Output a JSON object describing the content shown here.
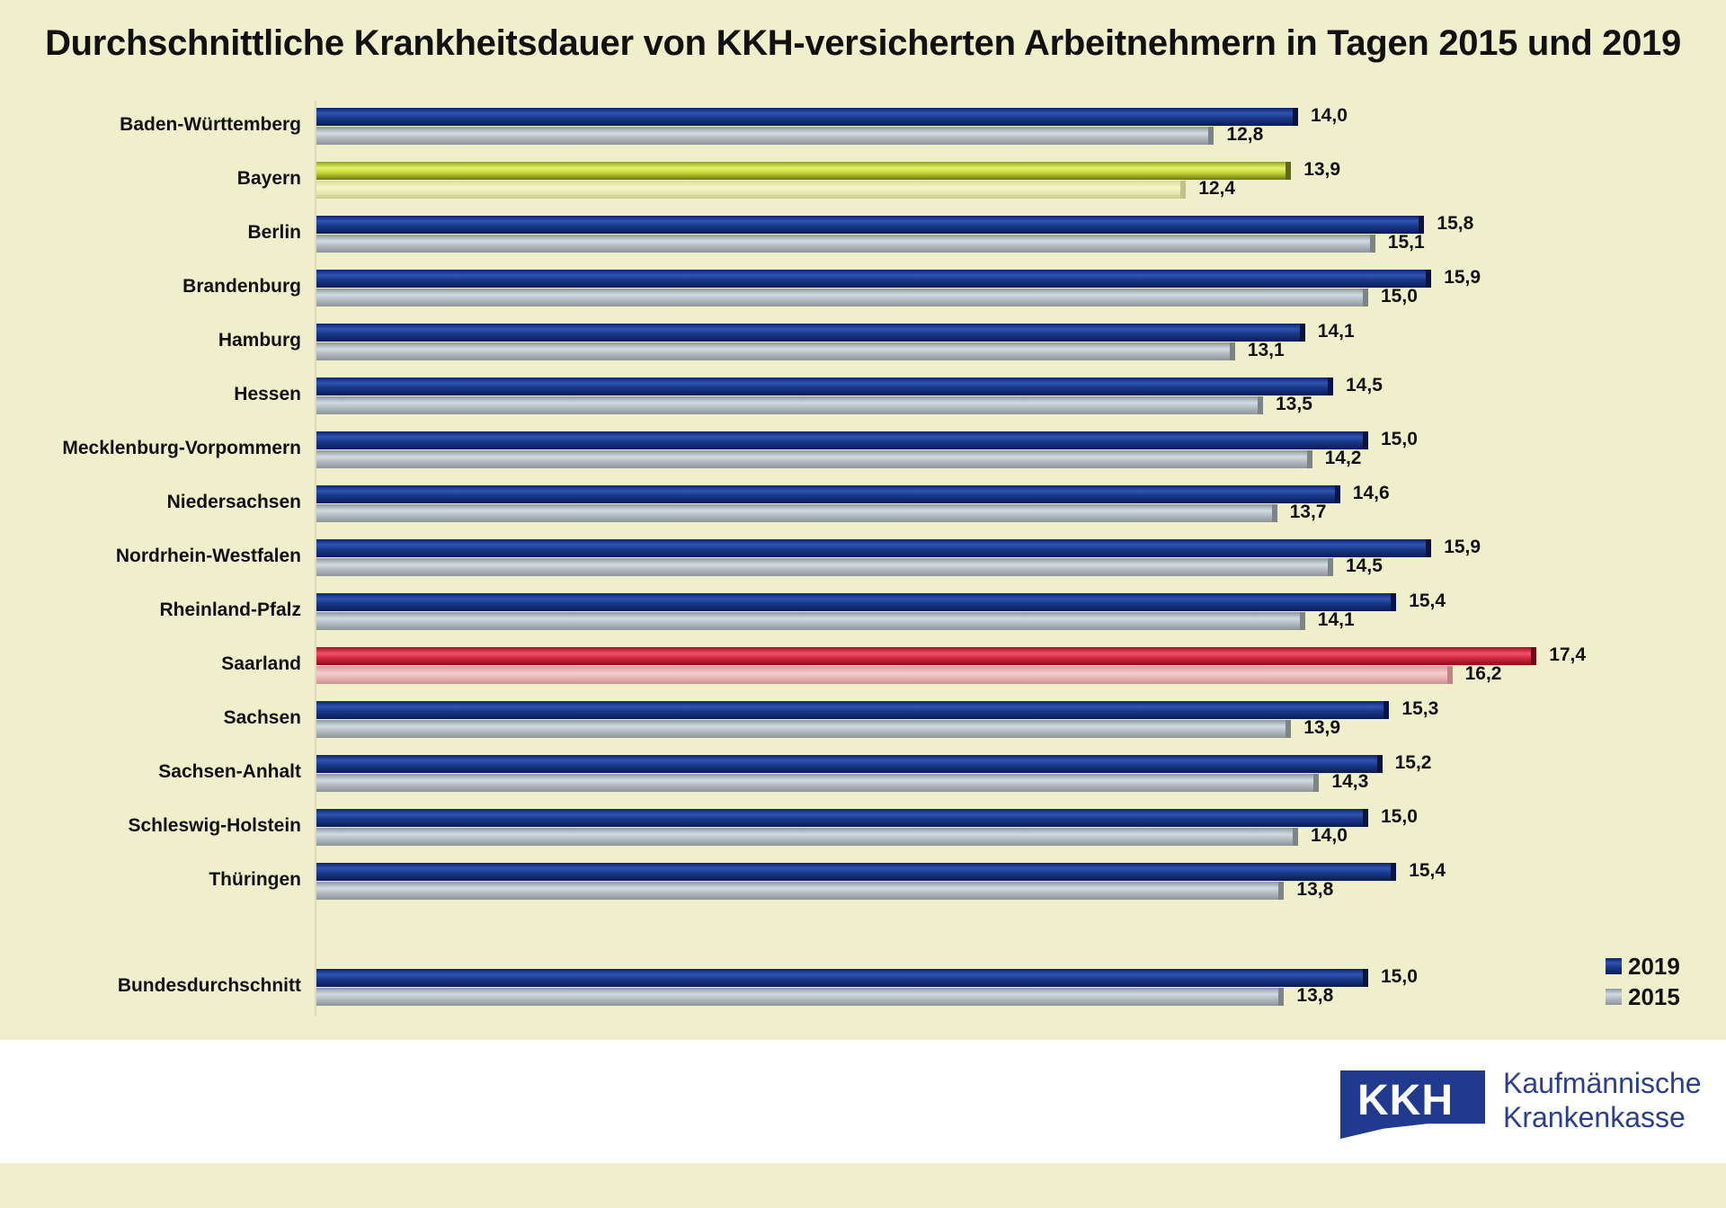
{
  "chart_data": {
    "type": "bar",
    "orientation": "horizontal",
    "title": "Durchschnittliche Krankheitsdauer von KKH-versicherten Arbeitnehmern in Tagen 2015 und 2019",
    "xlabel": "",
    "ylabel": "",
    "xlim": [
      0,
      18
    ],
    "grid": false,
    "legend_position": "bottom-right",
    "categories": [
      "Baden-Württemberg",
      "Bayern",
      "Berlin",
      "Brandenburg",
      "Hamburg",
      "Hessen",
      "Mecklenburg-Vorpommern",
      "Niedersachsen",
      "Nordrhein-Westfalen",
      "Rheinland-Pfalz",
      "Saarland",
      "Sachsen",
      "Sachsen-Anhalt",
      "Schleswig-Holstein",
      "Thüringen",
      "Bundesdurchschnitt"
    ],
    "value_labels_2019": [
      "14,0",
      "13,9",
      "15,8",
      "15,9",
      "14,1",
      "14,5",
      "15,0",
      "14,6",
      "15,9",
      "15,4",
      "17,4",
      "15,3",
      "15,2",
      "15,0",
      "15,4",
      "15,0"
    ],
    "value_labels_2015": [
      "12,8",
      "12,4",
      "15,1",
      "15,0",
      "13,1",
      "13,5",
      "14,2",
      "13,7",
      "14,5",
      "14,1",
      "16,2",
      "13,9",
      "14,3",
      "14,0",
      "13,8",
      "13,8"
    ],
    "series": [
      {
        "name": "2019",
        "color": "#1b3a8c",
        "values": [
          14.0,
          13.9,
          15.8,
          15.9,
          14.1,
          14.5,
          15.0,
          14.6,
          15.9,
          15.4,
          17.4,
          15.3,
          15.2,
          15.0,
          15.4,
          15.0
        ]
      },
      {
        "name": "2015",
        "color": "#b5bec4",
        "values": [
          12.8,
          12.4,
          15.1,
          15.0,
          13.1,
          13.5,
          14.2,
          13.7,
          14.5,
          14.1,
          16.2,
          13.9,
          14.3,
          14.0,
          13.8,
          13.8
        ]
      }
    ],
    "highlights": {
      "Bayern": "#c7d83a",
      "Saarland": "#d42a44"
    }
  },
  "logo": {
    "mark": "KKH",
    "line1": "Kaufmännische",
    "line2": "Krankenkasse"
  }
}
